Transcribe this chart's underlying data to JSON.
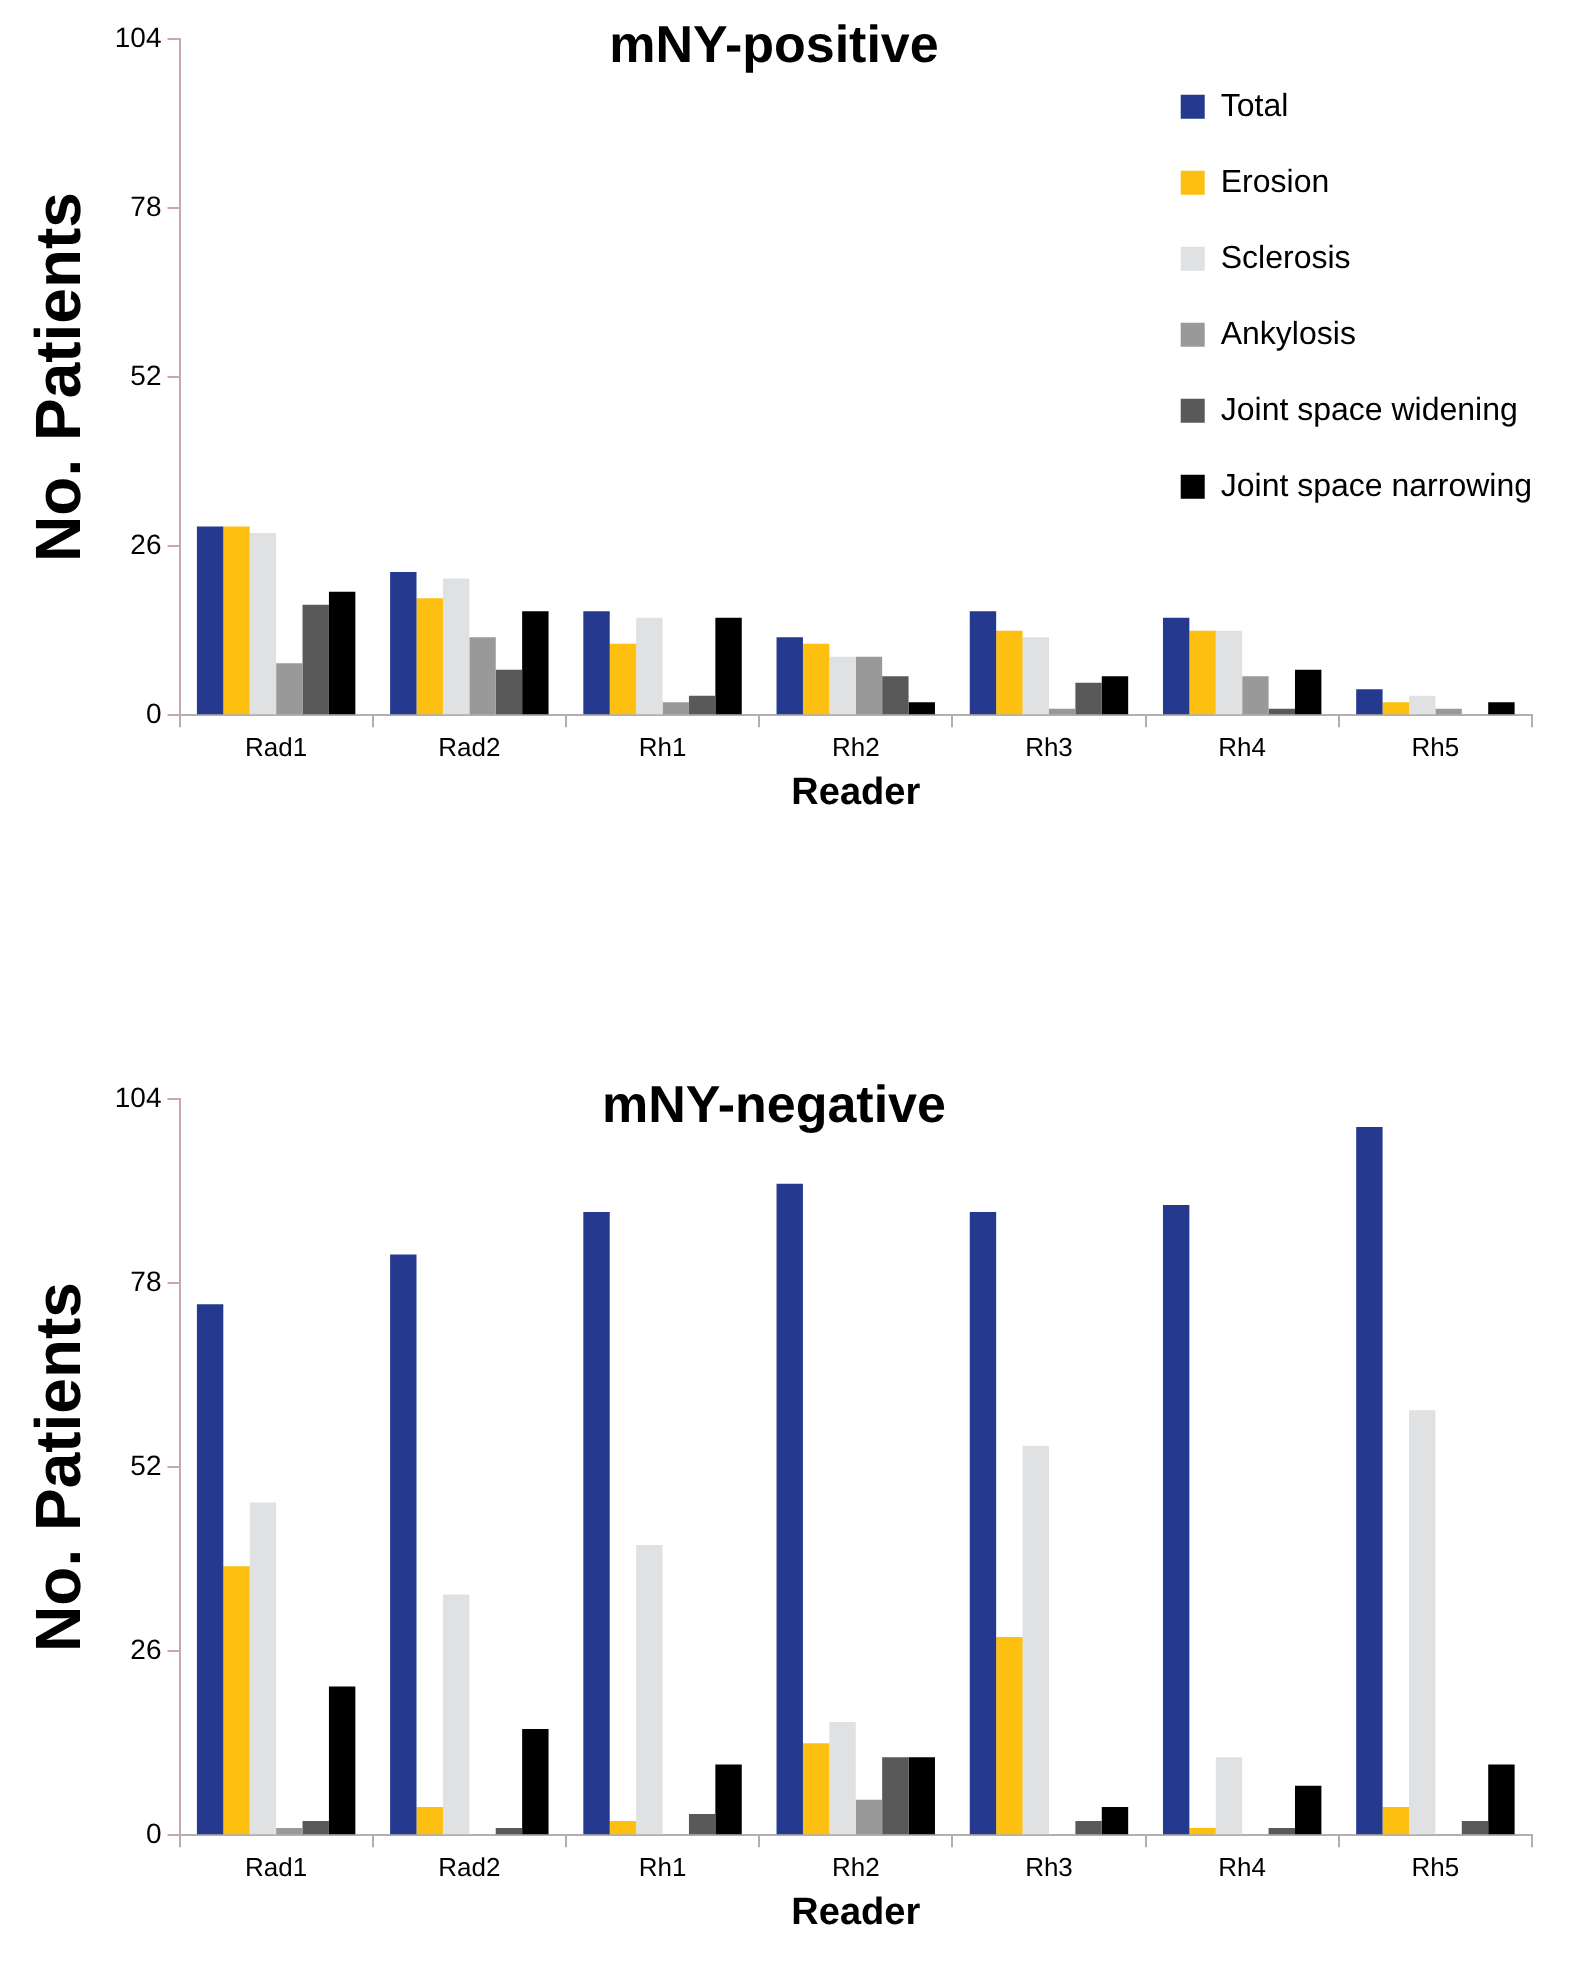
{
  "chart_data": [
    {
      "type": "bar",
      "title": "mNY-positive",
      "xlabel": "Reader",
      "ylabel": "No. Patients",
      "categories": [
        "Rad1",
        "Rad2",
        "Rh1",
        "Rh2",
        "Rh3",
        "Rh4",
        "Rh5"
      ],
      "series": [
        {
          "name": "Total",
          "color": "#253a8e",
          "values": [
            29,
            22,
            16,
            12,
            16,
            15,
            4
          ]
        },
        {
          "name": "Erosion",
          "color": "#fdc010",
          "values": [
            29,
            18,
            11,
            11,
            13,
            13,
            2
          ]
        },
        {
          "name": "Sclerosis",
          "color": "#dfe1e3",
          "values": [
            28,
            21,
            15,
            9,
            12,
            13,
            3
          ]
        },
        {
          "name": "Ankylosis",
          "color": "#999999",
          "values": [
            8,
            12,
            2,
            9,
            1,
            6,
            1
          ]
        },
        {
          "name": "Joint space widening",
          "color": "#595959",
          "values": [
            17,
            7,
            3,
            6,
            5,
            1,
            0
          ]
        },
        {
          "name": "Joint space narrowing",
          "color": "#000000",
          "values": [
            19,
            16,
            15,
            2,
            6,
            7,
            2
          ]
        }
      ],
      "ylim": [
        0,
        104
      ],
      "yticks": [
        0,
        26,
        52,
        78,
        104
      ],
      "grid": false,
      "legend": "top right"
    },
    {
      "type": "bar",
      "title": "mNY-negative",
      "xlabel": "Reader",
      "ylabel": "No. Patients",
      "categories": [
        "Rad1",
        "Rad2",
        "Rh1",
        "Rh2",
        "Rh3",
        "Rh4",
        "Rh5"
      ],
      "series": [
        {
          "color": "#253a8e",
          "values": [
            75,
            82,
            88,
            92,
            88,
            89,
            100
          ]
        },
        {
          "color": "#fdc010",
          "values": [
            38,
            4,
            2,
            13,
            28,
            1,
            4
          ]
        },
        {
          "color": "#dfe1e3",
          "values": [
            47,
            34,
            41,
            16,
            55,
            11,
            60
          ]
        },
        {
          "color": "#999999",
          "values": [
            1,
            0,
            0,
            5,
            0,
            0,
            0
          ]
        },
        {
          "color": "#595959",
          "values": [
            2,
            1,
            3,
            11,
            2,
            1,
            2
          ]
        },
        {
          "color": "#000000",
          "values": [
            21,
            15,
            10,
            11,
            4,
            7,
            10
          ]
        }
      ],
      "ylim": [
        0,
        104
      ],
      "yticks": [
        0,
        26,
        52,
        78,
        104
      ],
      "grid": false,
      "legend": false
    }
  ]
}
